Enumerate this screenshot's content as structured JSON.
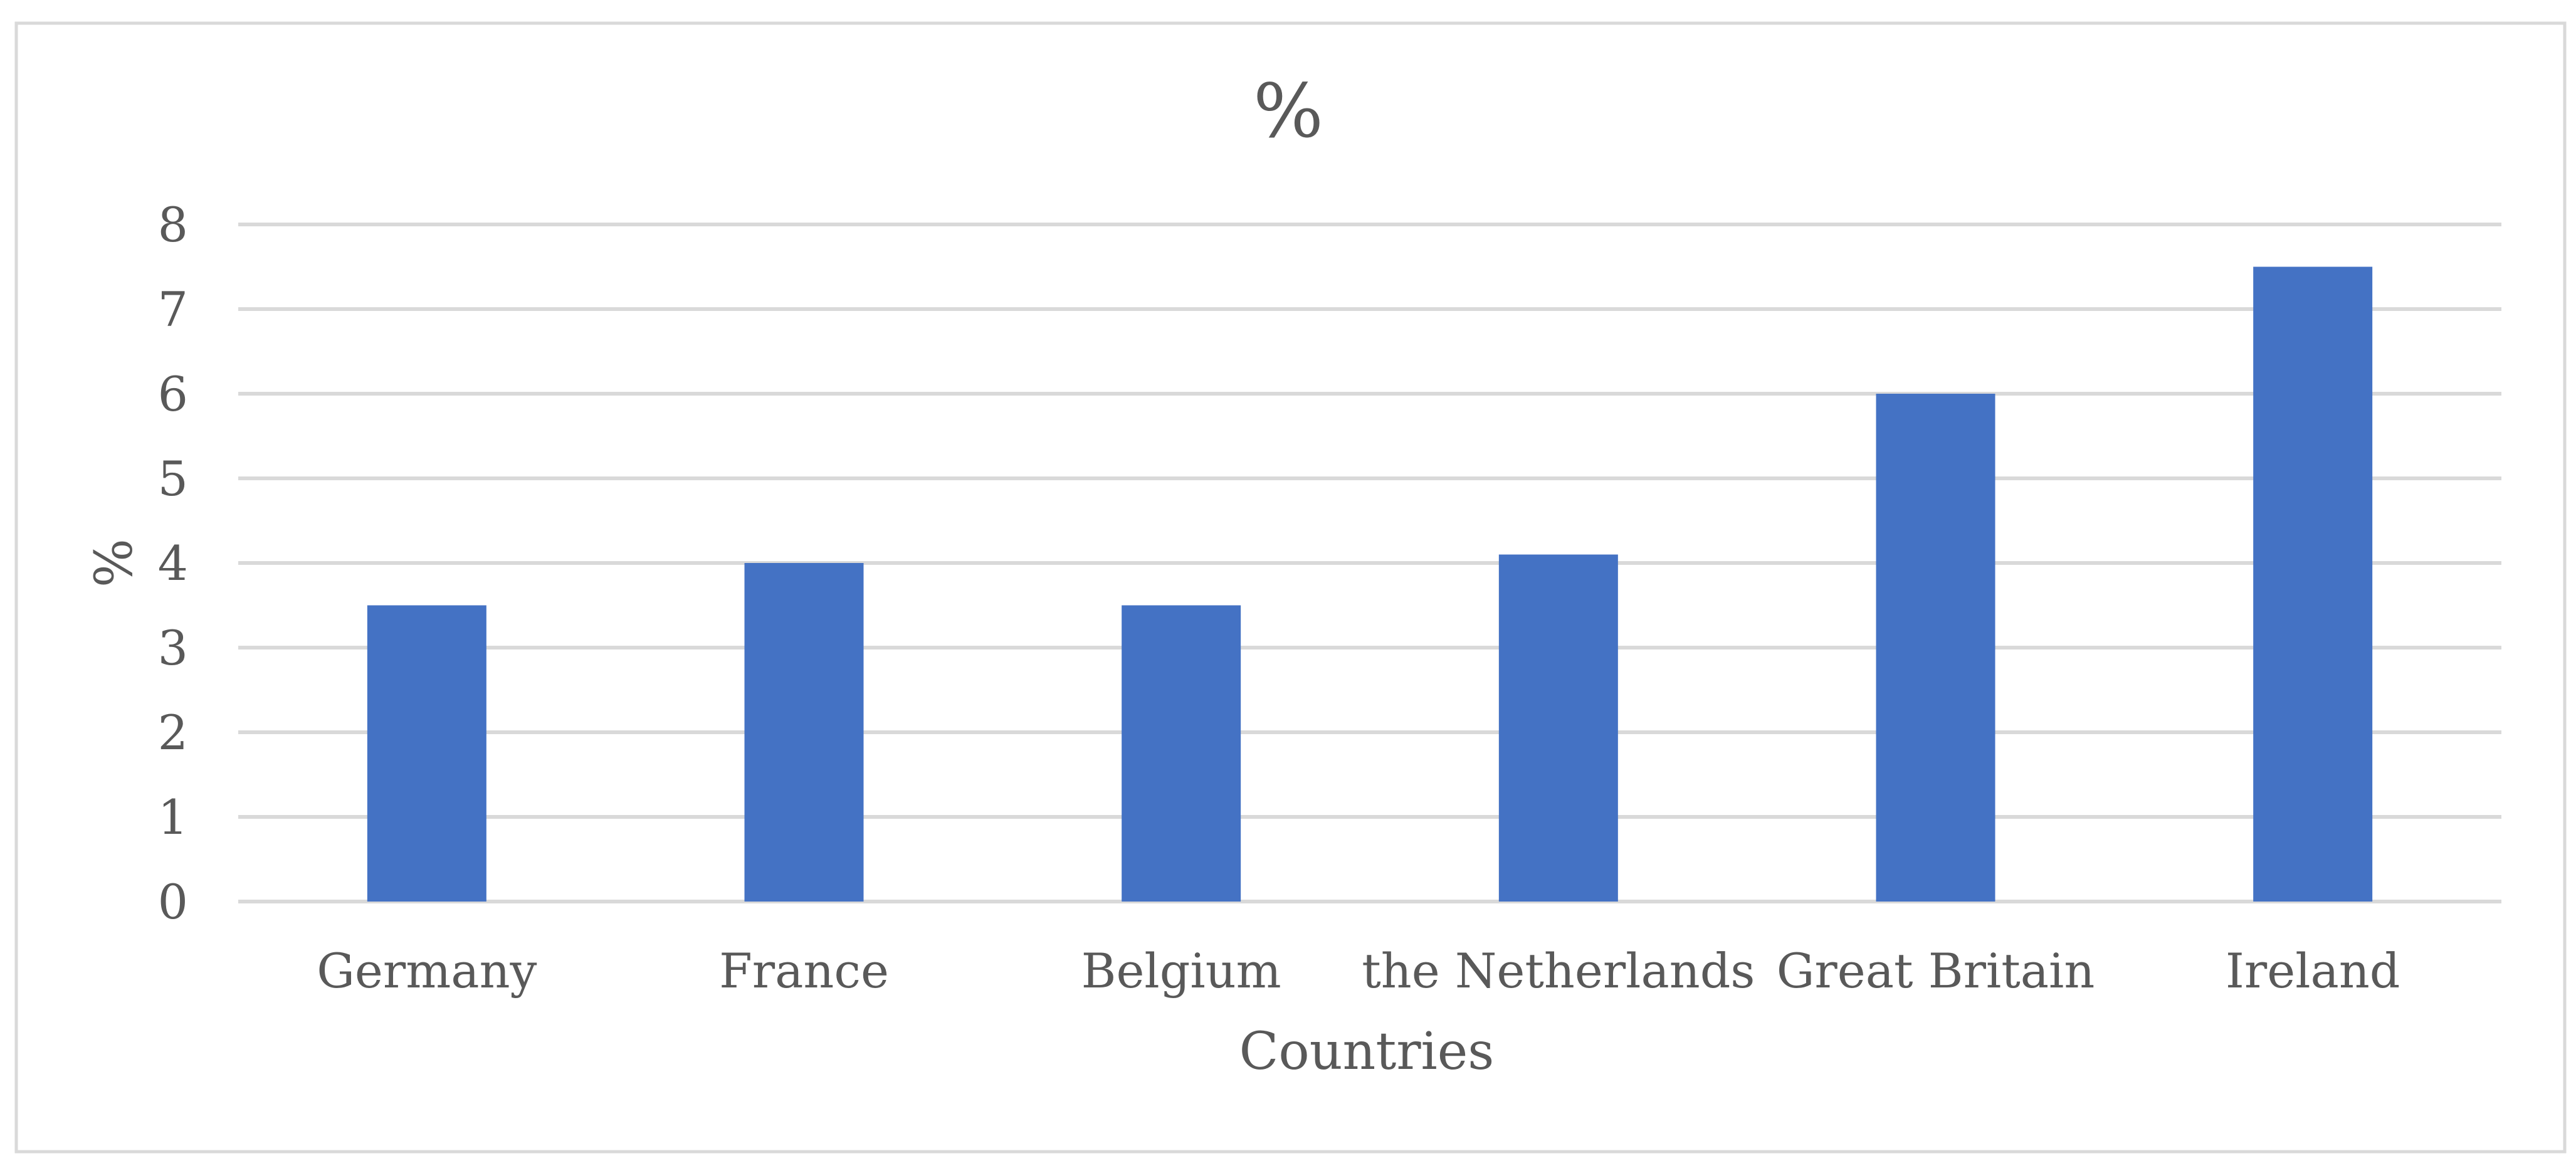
{
  "colors": {
    "bar": "#4472C4",
    "gridline": "#D9D9D9",
    "text": "#595959",
    "frame": "#D9D9D9",
    "background": "#FFFFFF"
  },
  "chart_data": {
    "type": "bar",
    "title": "%",
    "xlabel": "Countries",
    "ylabel": "%",
    "categories": [
      "Germany",
      "France",
      "Belgium",
      "the Netherlands",
      "Great Britain",
      "Ireland"
    ],
    "values": [
      3.5,
      4,
      3.5,
      4.1,
      6,
      7.5
    ],
    "ylim": [
      0,
      8
    ],
    "yticks": [
      "0",
      "1",
      "2",
      "3",
      "4",
      "5",
      "6",
      "7",
      "8"
    ],
    "grid": true,
    "legend": "none"
  }
}
